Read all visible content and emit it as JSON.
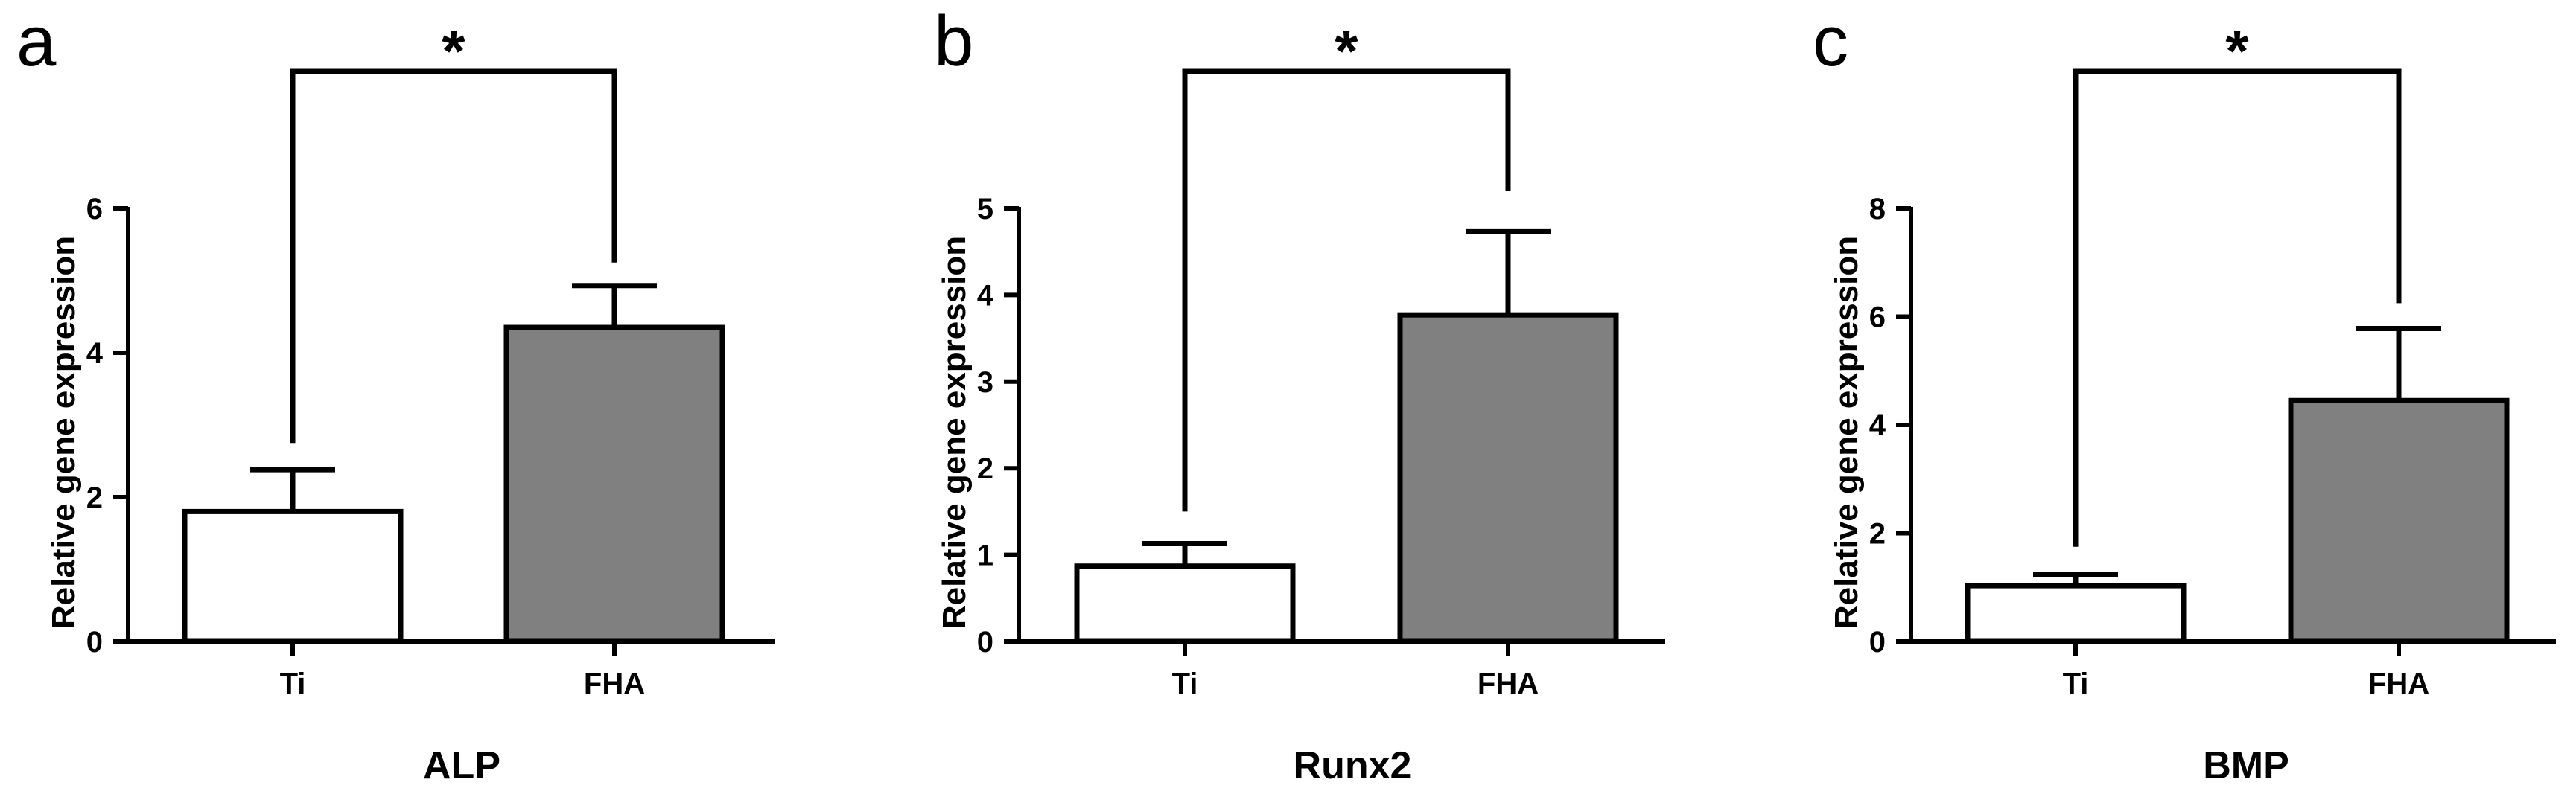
{
  "chart_data": [
    {
      "type": "bar",
      "panel": "a",
      "title": "",
      "xlabel": "ALP",
      "ylabel": "Relative gene expression",
      "categories": [
        "Ti",
        "FHA"
      ],
      "values": [
        1.8,
        4.35
      ],
      "errors": [
        0.58,
        0.58
      ],
      "bar_colors": [
        "#ffffff",
        "#808080"
      ],
      "ylim": [
        0,
        6
      ],
      "yticks": [
        0,
        2,
        4,
        6
      ],
      "ytick_labels": [
        "0",
        "2",
        "4",
        "6"
      ],
      "significance": {
        "label": "*",
        "between": [
          "Ti",
          "FHA"
        ],
        "ti_drop_to": 2.75,
        "fha_drop_to": 5.25
      },
      "grid": false
    },
    {
      "type": "bar",
      "panel": "b",
      "title": "",
      "xlabel": "Runx2",
      "ylabel": "Relative gene expression",
      "categories": [
        "Ti",
        "FHA"
      ],
      "values": [
        0.87,
        3.77
      ],
      "errors": [
        0.26,
        0.96
      ],
      "bar_colors": [
        "#ffffff",
        "#808080"
      ],
      "ylim": [
        0,
        5
      ],
      "yticks": [
        0,
        1,
        2,
        3,
        4,
        5
      ],
      "ytick_labels": [
        "0",
        "1",
        "2",
        "3",
        "4",
        "5"
      ],
      "significance": {
        "label": "*",
        "between": [
          "Ti",
          "FHA"
        ],
        "ti_drop_to": 1.5,
        "fha_drop_to": 5.2
      },
      "grid": false
    },
    {
      "type": "bar",
      "panel": "c",
      "title": "",
      "xlabel": "BMP",
      "ylabel": "Relative gene expression",
      "categories": [
        "Ti",
        "FHA"
      ],
      "values": [
        1.03,
        4.45
      ],
      "errors": [
        0.2,
        1.33
      ],
      "bar_colors": [
        "#ffffff",
        "#808080"
      ],
      "ylim": [
        0,
        8
      ],
      "yticks": [
        0,
        2,
        4,
        6,
        8
      ],
      "ytick_labels": [
        "0",
        "2",
        "4",
        "6",
        "8"
      ],
      "significance": {
        "label": "*",
        "between": [
          "Ti",
          "FHA"
        ],
        "ti_drop_to": 1.75,
        "fha_drop_to": 6.25
      },
      "grid": false
    }
  ]
}
